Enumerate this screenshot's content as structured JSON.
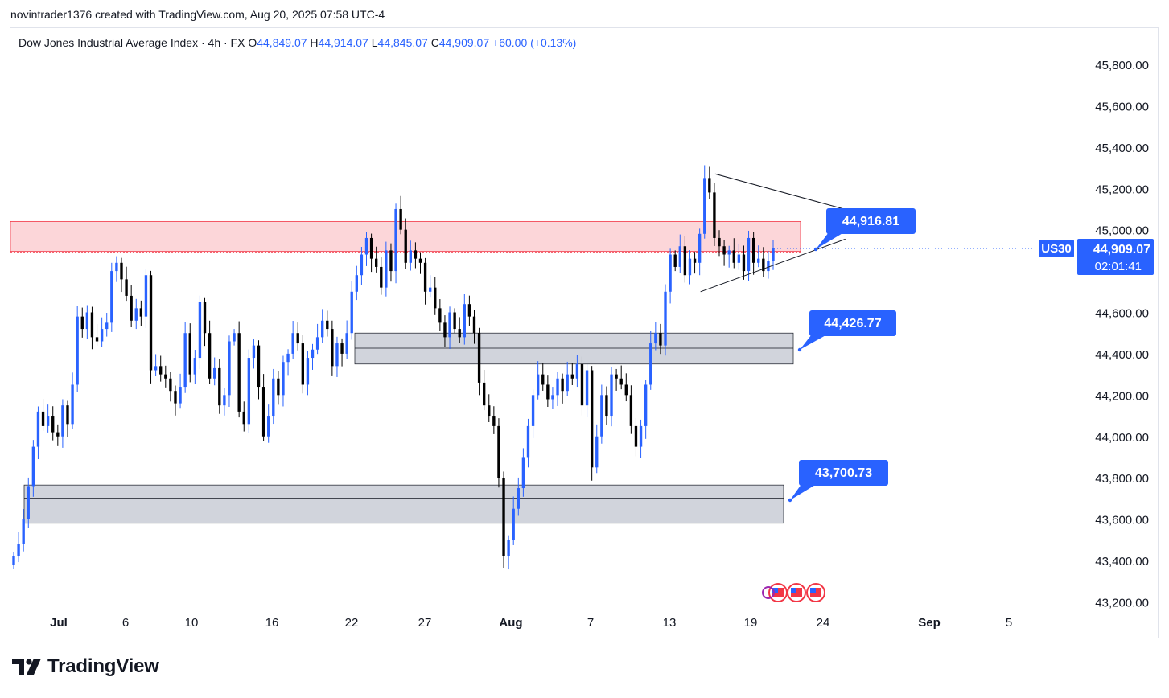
{
  "header": {
    "caption": "novintrader1376 created with TradingView.com, Aug 20, 2025 07:58 UTC-4"
  },
  "legend": {
    "symbol": "Dow Jones Industrial Average Index · 4h · FX",
    "o_label": "O",
    "o_value": "44,849.07",
    "h_label": "H",
    "h_value": "44,914.07",
    "l_label": "L",
    "l_value": "44,845.07",
    "c_label": "C",
    "c_value": "44,909.07",
    "change": "+60.00 (+0.13%)"
  },
  "colors": {
    "up": "#2962ff",
    "down": "#000000",
    "accent": "#2962ff",
    "resistance_fill": "#fcd6d9",
    "support_fill": "#d1d4dc"
  },
  "footer": {
    "brand": "TradingView"
  },
  "chart_data": {
    "type": "candlestick",
    "symbol": "US30",
    "ylim": [
      43200,
      45900
    ],
    "y_ticks": [
      "45,800.00",
      "45,600.00",
      "45,400.00",
      "45,200.00",
      "45,000.00",
      "44,600.00",
      "44,400.00",
      "44,200.00",
      "44,000.00",
      "43,800.00",
      "43,600.00",
      "43,400.00",
      "43,200.00"
    ],
    "x_ticks": [
      "Jul",
      "6",
      "10",
      "16",
      "22",
      "27",
      "Aug",
      "7",
      "13",
      "19",
      "24",
      "Sep",
      "5"
    ],
    "price_tag": {
      "symbol": "US30",
      "price": "44,909.07",
      "countdown": "02:01:41",
      "value": 44909.07
    },
    "zones": [
      {
        "name": "resistance",
        "top": 45040,
        "bottom": 44895,
        "from": "Jul 1",
        "to": "Aug 22"
      },
      {
        "name": "support-1",
        "top": 44500,
        "bottom": 44350,
        "from": "Jul 22",
        "to": "Aug 22",
        "mid": 44426.77
      },
      {
        "name": "support-2",
        "top": 43765,
        "bottom": 43580,
        "from": "Jul 1",
        "to": "Aug 22",
        "mid": 43700.73
      }
    ],
    "callouts": [
      {
        "label": "44,916.81",
        "value": 44916.81
      },
      {
        "label": "44,426.77",
        "value": 44426.77
      },
      {
        "label": "43,700.73",
        "value": 43700.73
      }
    ],
    "triangle": {
      "upper": [
        [
          45270,
          "Aug 15"
        ],
        [
          45110,
          "Aug 22"
        ]
      ],
      "lower": [
        [
          44700,
          "Aug 14"
        ],
        [
          44900,
          "Aug 22"
        ]
      ]
    },
    "candles_close": [
      43420,
      43480,
      43600,
      43760,
      43950,
      44120,
      44050,
      44100,
      44020,
      44000,
      44150,
      44060,
      44250,
      44580,
      44520,
      44600,
      44480,
      44460,
      44520,
      44550,
      44800,
      44840,
      44760,
      44680,
      44560,
      44620,
      44580,
      44780,
      44320,
      44340,
      44300,
      44280,
      44220,
      44160,
      44240,
      44500,
      44300,
      44380,
      44650,
      44500,
      44280,
      44330,
      44150,
      44200,
      44460,
      44500,
      44120,
      44060,
      44380,
      44440,
      44240,
      44000,
      44100,
      44280,
      44200,
      44360,
      44400,
      44500,
      44450,
      44250,
      44380,
      44420,
      44480,
      44560,
      44520,
      44340,
      44450,
      44400,
      44500,
      44700,
      44780,
      44880,
      44960,
      44860,
      44820,
      44720,
      44900,
      44800,
      45100,
      45000,
      44840,
      44900,
      44860,
      44840,
      44700,
      44720,
      44620,
      44550,
      44480,
      44600,
      44520,
      44480,
      44640,
      44580,
      44500,
      44260,
      44150,
      44100,
      44050,
      43800,
      43420,
      43500,
      43650,
      43750,
      43900,
      44050,
      44200,
      44300,
      44250,
      44180,
      44200,
      44280,
      44220,
      44300,
      44280,
      44350,
      44150,
      44320,
      43850,
      44000,
      44200,
      44100,
      44300,
      44280,
      44250,
      44200,
      44050,
      43950,
      44050,
      44250,
      44450,
      44500,
      44440,
      44700,
      44880,
      44820,
      44920,
      44780,
      44860,
      44840,
      44980,
      45250,
      45180,
      44960,
      44920,
      44880,
      44900,
      44840,
      44880,
      44800,
      44960,
      44840,
      44860,
      44800,
      44850,
      44909
    ]
  }
}
